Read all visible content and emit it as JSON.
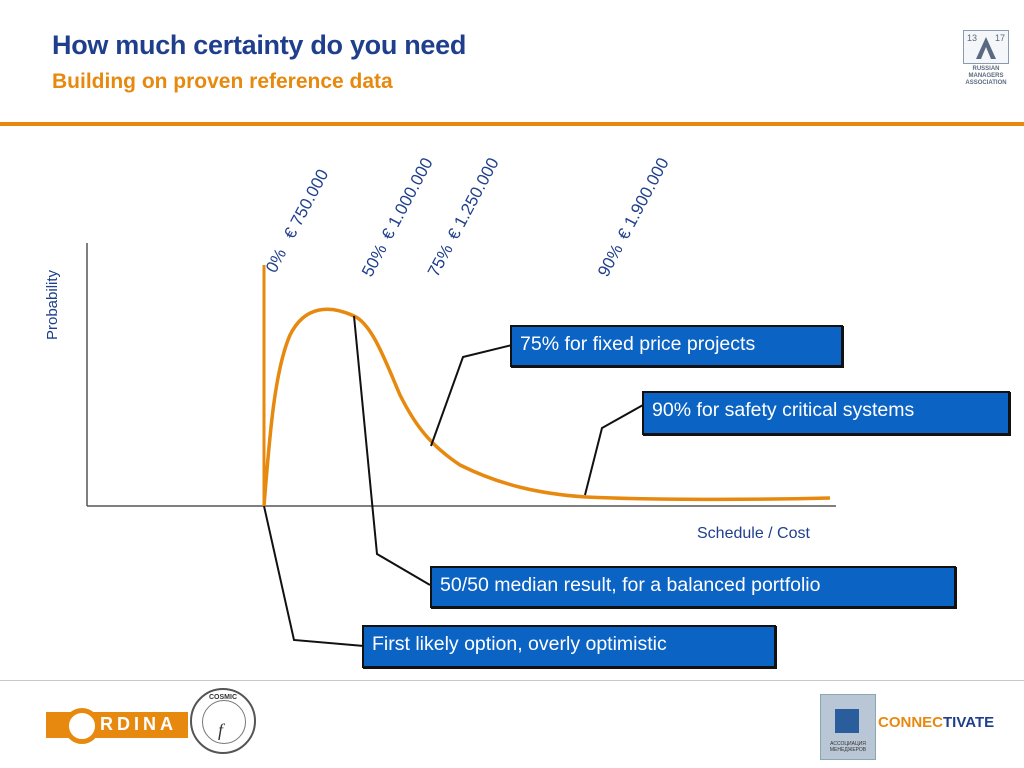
{
  "header": {
    "title": "How much certainty do you need",
    "subtitle": "Building on proven reference data"
  },
  "rma_logo": {
    "page_left": "13",
    "page_right": "17",
    "line1": "RUSSIAN",
    "line2": "MANAGERS",
    "line3": "ASSOCIATION"
  },
  "diagram": {
    "y_axis_label": "Probability",
    "x_axis_label": "Schedule / Cost",
    "percentiles": [
      {
        "pct": "0%",
        "amount": "€ 750.000"
      },
      {
        "pct": "50%",
        "amount": "€ 1.000.000"
      },
      {
        "pct": "75%",
        "amount": "€ 1.250.000"
      },
      {
        "pct": "90%",
        "amount": "€ 1.900.000"
      }
    ],
    "curve_color": "#e8890f",
    "axis_color": "#555555"
  },
  "callouts": {
    "fixed_price": "75% for fixed price projects",
    "safety": "90% for safety critical systems",
    "median": "50/50 median result, for a balanced portfolio",
    "first_option": "First likely option, overly optimistic",
    "box_color": "#0b63c4"
  },
  "footer": {
    "ordina": "RDINA",
    "cosmic": "COSMIC",
    "cosmic_symbol": "f",
    "connectivate_a": "CONNEC",
    "connectivate_b": "TIVATE",
    "emblem_caption": "АССОЦИАЦИЯ МЕНЕДЖЕРОВ"
  }
}
